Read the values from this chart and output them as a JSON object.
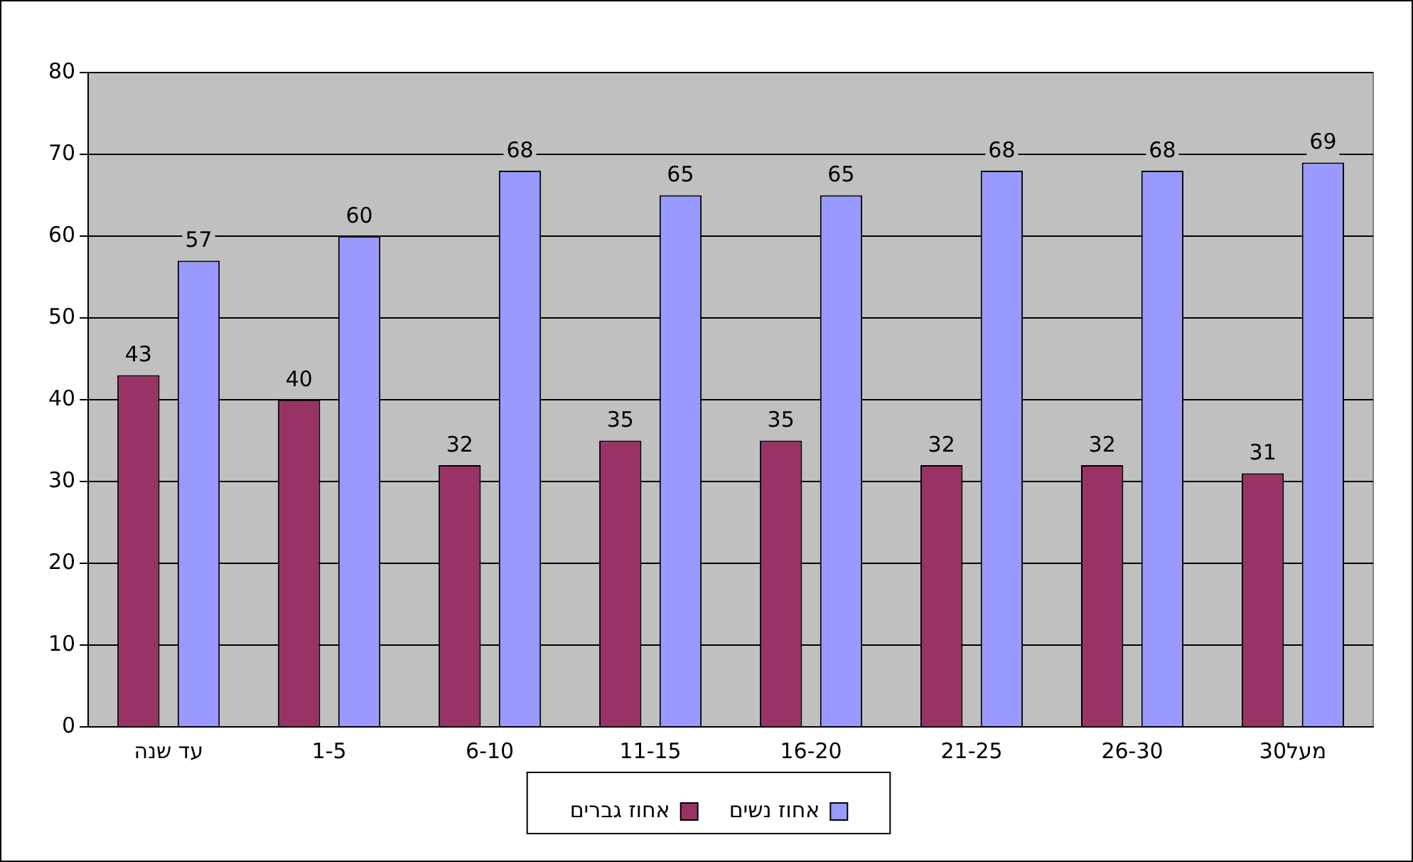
{
  "chart_data": {
    "type": "bar",
    "categories": [
      "עד שנה",
      "1-5",
      "6-10",
      "11-15",
      "16-20",
      "21-25",
      "26-30",
      "מעל30"
    ],
    "series": [
      {
        "name": "אחוז גברים",
        "color": "#993366",
        "values": [
          43,
          40,
          32,
          35,
          35,
          32,
          32,
          31
        ]
      },
      {
        "name": "אחוז נשים",
        "color": "#9999ff",
        "values": [
          57,
          60,
          68,
          65,
          65,
          68,
          68,
          69
        ]
      }
    ],
    "ylim": [
      0,
      80
    ],
    "yticks": [
      0,
      10,
      20,
      30,
      40,
      50,
      60,
      70,
      80
    ],
    "grid": "y",
    "legend": "bottom",
    "data_labels": true
  }
}
